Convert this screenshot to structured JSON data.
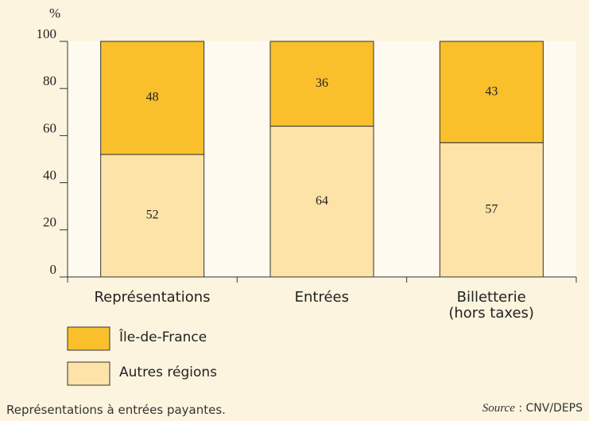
{
  "chart_data": {
    "type": "stacked_bar",
    "y_label": "%",
    "categories": [
      "Représentations",
      "Entrées",
      "Billetterie\n(hors taxes)"
    ],
    "series": [
      {
        "name": "Autres régions",
        "color": "#fde3a7",
        "values": [
          52,
          64,
          57
        ]
      },
      {
        "name": "Île-de-France",
        "color": "#f9c02c",
        "values": [
          48,
          36,
          43
        ]
      }
    ],
    "ylim": [
      0,
      100
    ],
    "yticks": [
      0,
      20,
      40,
      60,
      80,
      100
    ],
    "grid": false,
    "note": "Représentations à entrées payantes.",
    "source_label": "Source",
    "source_text": " : CNV/DEPS"
  }
}
